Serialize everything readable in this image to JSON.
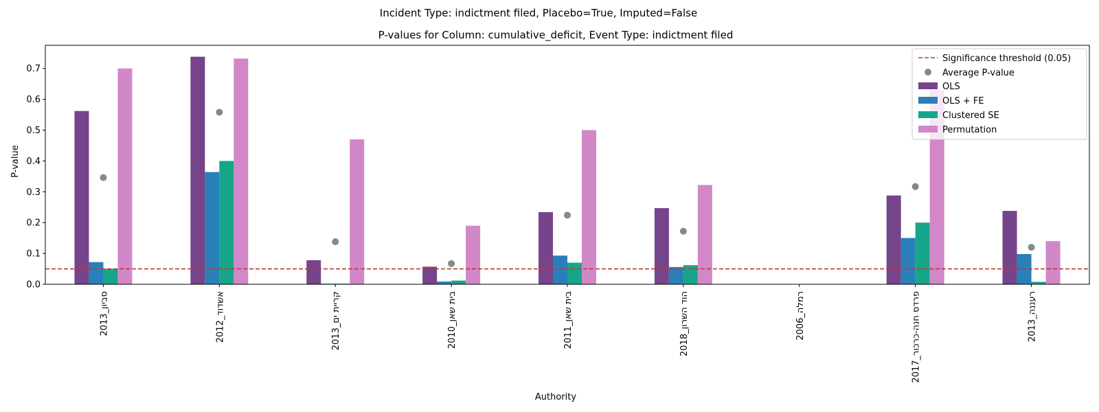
{
  "figure": {
    "suptitle": "Incident Type: indictment filed, Placebo=True, Imputed=False"
  },
  "chart_data": {
    "type": "bar",
    "title": "P-values for Column: cumulative_deficit, Event Type: indictment filed",
    "xlabel": "Authority",
    "ylabel": "P-value",
    "ylim": [
      0,
      0.775
    ],
    "yticks": [
      "0.0",
      "0.1",
      "0.2",
      "0.3",
      "0.4",
      "0.5",
      "0.6",
      "0.7"
    ],
    "grid": false,
    "legend_position": "top-right",
    "categories": [
      "סביון_2013",
      "אשדוד_2012",
      "קריית ים_2013",
      "בית שאן_2010",
      "בית שאן_2011",
      "הוד השרון_2018",
      "רמלה_2006",
      "פרדס חנה-כרכור_2017",
      "רעננה_2013"
    ],
    "series": [
      {
        "name": "OLS",
        "color": "#76448a",
        "values": [
          0.562,
          0.738,
          0.078,
          0.057,
          0.234,
          0.247,
          0,
          0.288,
          0.238
        ]
      },
      {
        "name": "OLS + FE",
        "color": "#2980b9",
        "values": [
          0.072,
          0.364,
          0.002,
          0.009,
          0.093,
          0.056,
          0,
          0.15,
          0.098
        ]
      },
      {
        "name": "Clustered SE",
        "color": "#17a589",
        "values": [
          0.05,
          0.4,
          0.002,
          0.012,
          0.07,
          0.062,
          0,
          0.2,
          0.008
        ]
      },
      {
        "name": "Permutation",
        "color": "#d288c8",
        "values": [
          0.7,
          0.732,
          0.47,
          0.19,
          0.5,
          0.322,
          0,
          0.63,
          0.14
        ]
      }
    ],
    "average": {
      "name": "Average P-value",
      "color": "#7f8c8d",
      "values": [
        0.346,
        0.558,
        0.138,
        0.067,
        0.224,
        0.172,
        null,
        0.317,
        0.12
      ]
    },
    "threshold": {
      "name": "Significance threshold (0.05)",
      "value": 0.05,
      "color": "#c0392b"
    }
  }
}
